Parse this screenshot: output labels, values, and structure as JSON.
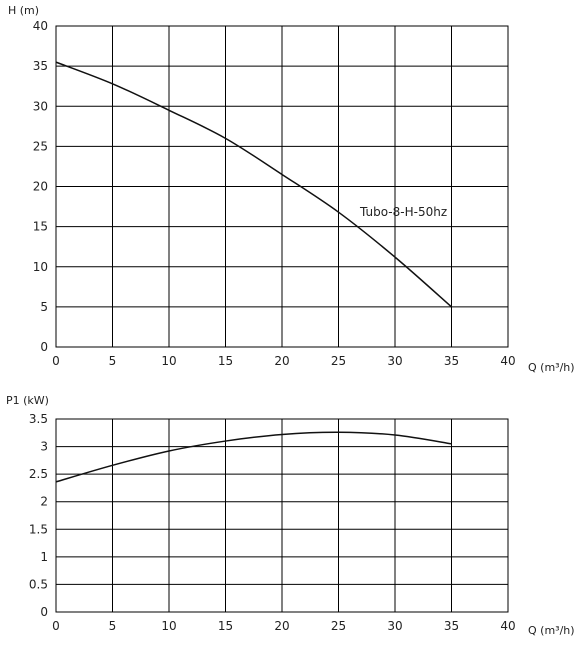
{
  "chart_data": [
    {
      "type": "line",
      "ylabel": "H (m)",
      "xlabel": "Q (m³/h)",
      "xlim": [
        0,
        40
      ],
      "ylim": [
        0,
        40
      ],
      "xticks": [
        "0",
        "5",
        "10",
        "15",
        "20",
        "25",
        "30",
        "35",
        "40"
      ],
      "yticks": [
        "0",
        "5",
        "10",
        "15",
        "20",
        "25",
        "30",
        "35",
        "40"
      ],
      "grid": true,
      "series": [
        {
          "name": "Tubo-8-H-50hz",
          "x": [
            0,
            5,
            10,
            15,
            20,
            25,
            30,
            35
          ],
          "y": [
            35.5,
            32.8,
            29.5,
            26.0,
            21.5,
            16.8,
            11.2,
            5.0
          ]
        }
      ]
    },
    {
      "type": "line",
      "ylabel": "P1 (kW)",
      "xlabel": "Q (m³/h)",
      "xlim": [
        0,
        40
      ],
      "ylim": [
        0,
        3.5
      ],
      "xticks": [
        "0",
        "5",
        "10",
        "15",
        "20",
        "25",
        "30",
        "35",
        "40"
      ],
      "yticks": [
        "0",
        "0.5",
        "1",
        "1.5",
        "2",
        "2.5",
        "3",
        "3.5"
      ],
      "grid": true,
      "series": [
        {
          "x": [
            0,
            5,
            10,
            15,
            20,
            25,
            30,
            35
          ],
          "y": [
            2.36,
            2.66,
            2.92,
            3.1,
            3.22,
            3.26,
            3.21,
            3.05
          ]
        }
      ]
    }
  ]
}
